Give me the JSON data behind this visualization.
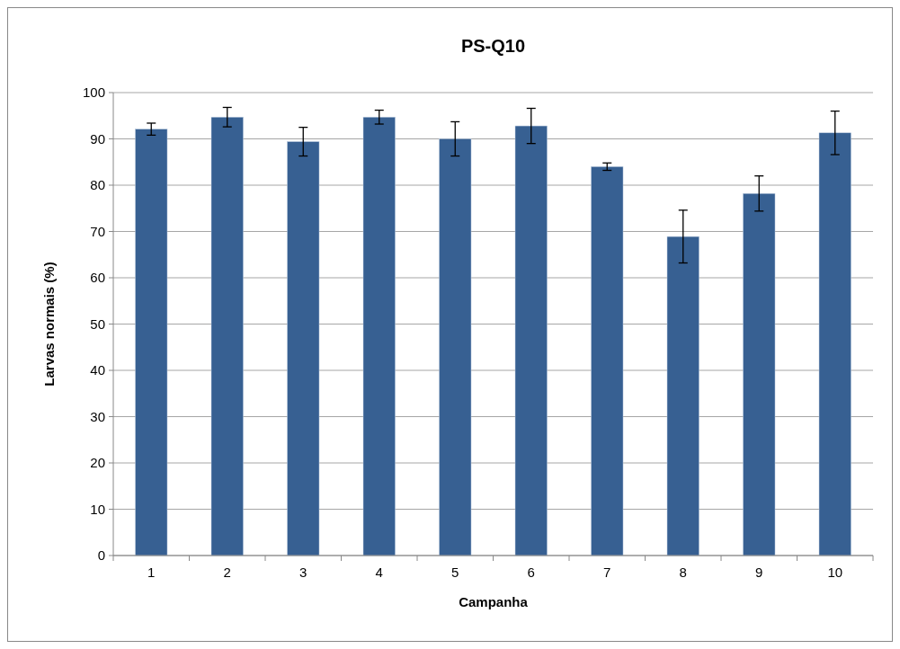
{
  "chart_data": {
    "type": "bar",
    "title": "PS-Q10",
    "xlabel": "Campanha",
    "ylabel": "Larvas normais (%)",
    "categories": [
      "1",
      "2",
      "3",
      "4",
      "5",
      "6",
      "7",
      "8",
      "9",
      "10"
    ],
    "values": [
      92.1,
      94.7,
      89.4,
      94.7,
      90.0,
      92.8,
      84.0,
      68.9,
      78.2,
      91.3
    ],
    "errors": [
      1.3,
      2.1,
      3.1,
      1.5,
      3.7,
      3.8,
      0.8,
      5.7,
      3.8,
      4.7
    ],
    "color": "#376092",
    "ylim": [
      0,
      100
    ],
    "yticks": [
      0,
      10,
      20,
      30,
      40,
      50,
      60,
      70,
      80,
      90,
      100
    ],
    "grid": "y"
  }
}
